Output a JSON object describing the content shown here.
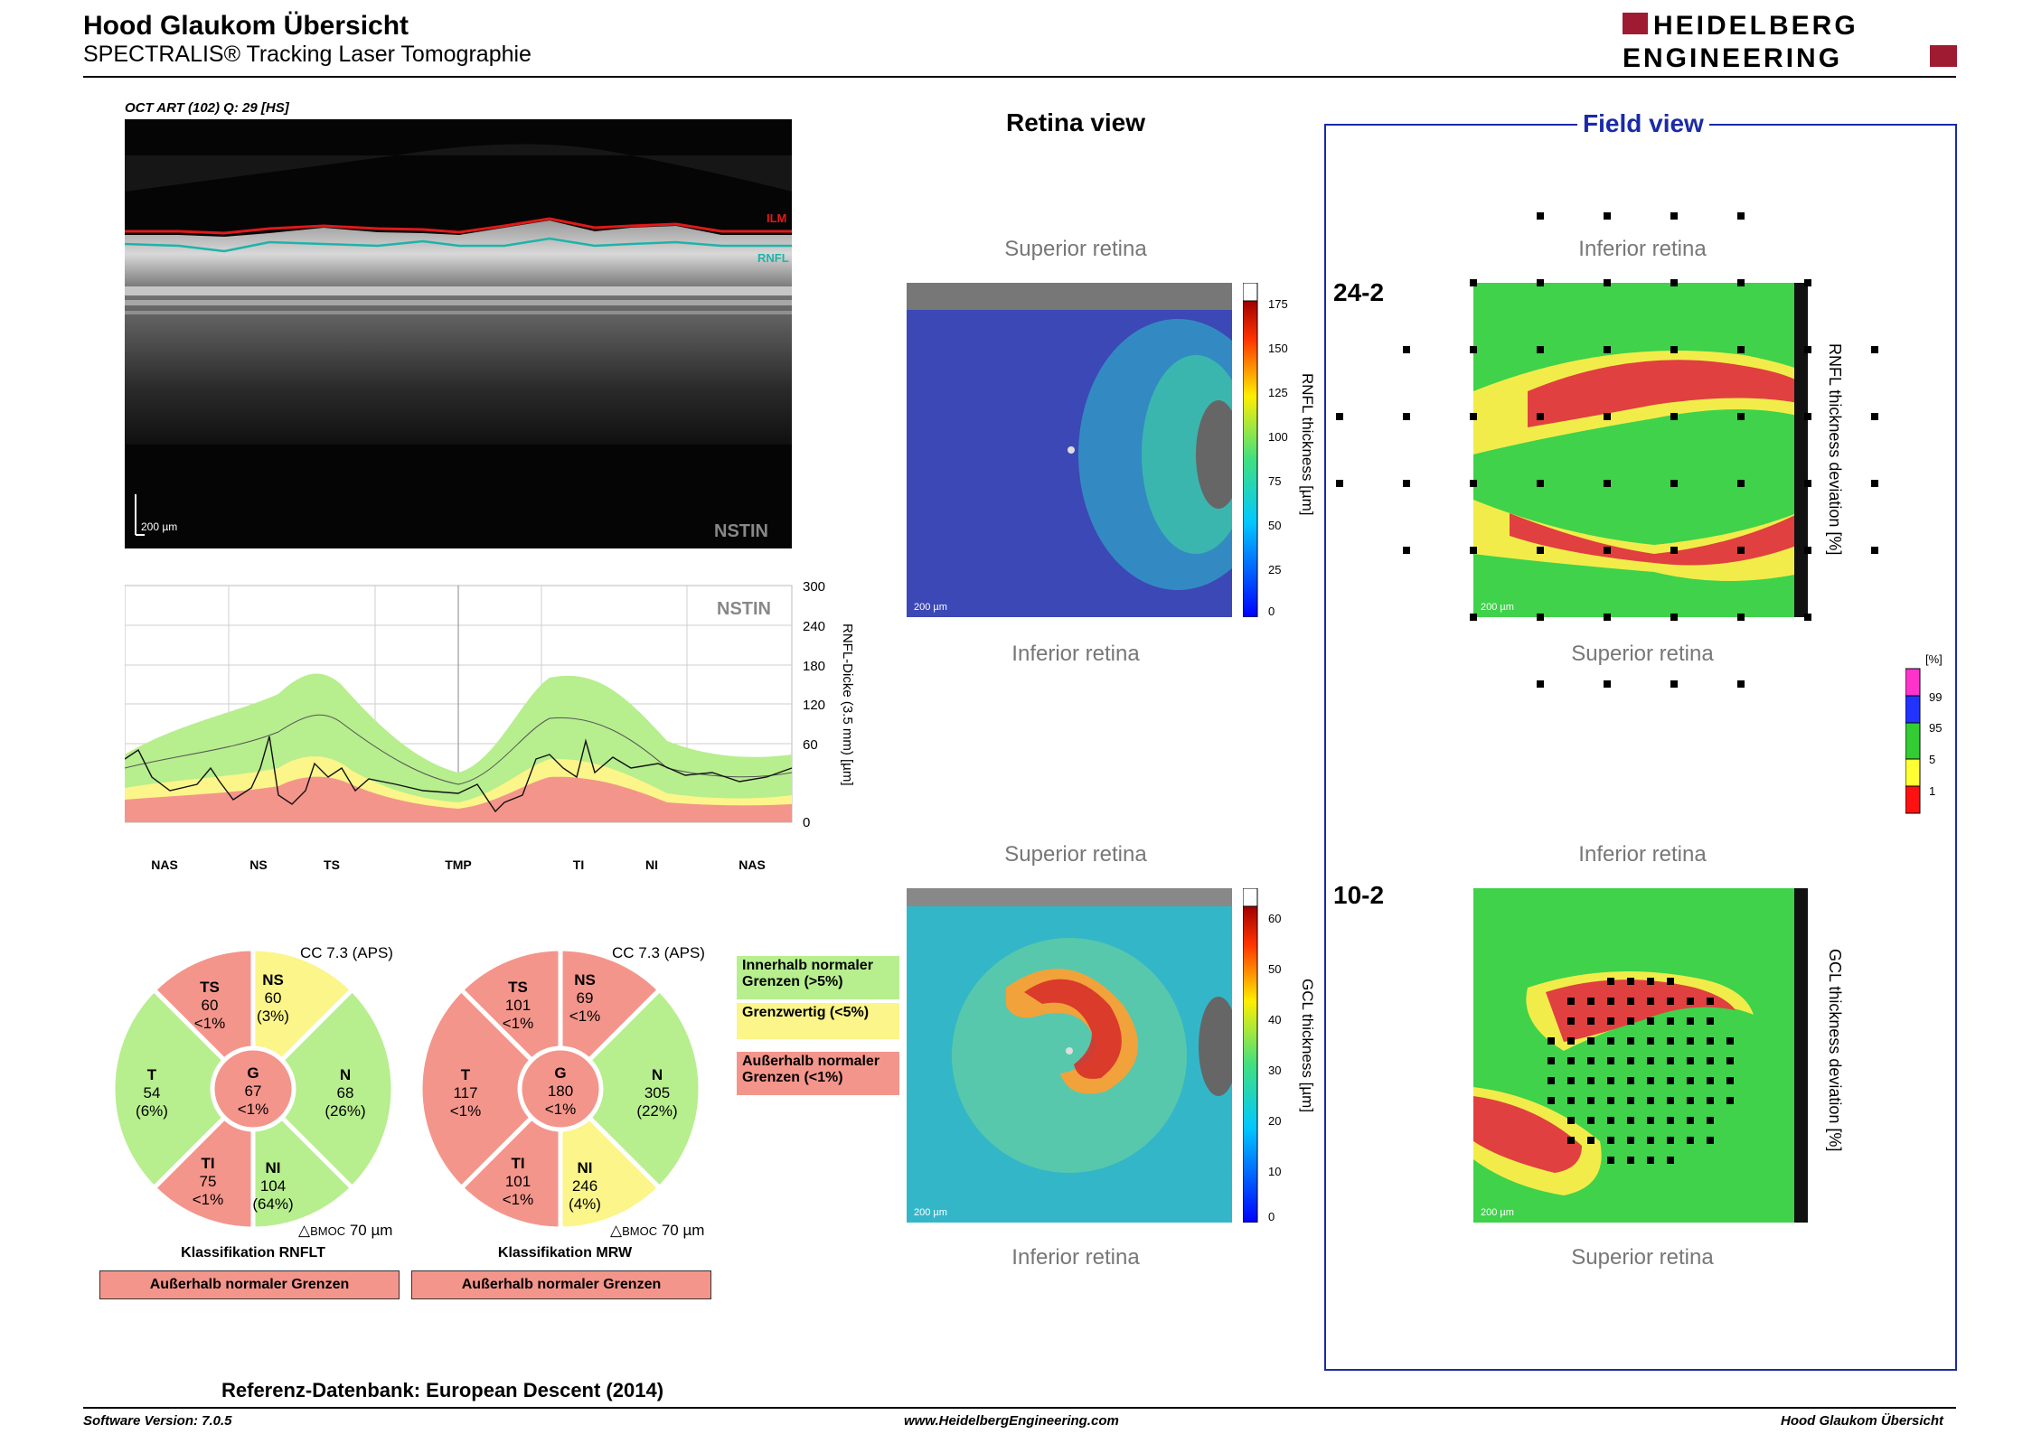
{
  "header": {
    "title": "Hood Glaukom Übersicht",
    "subtitle": "SPECTRALIS® Tracking Laser Tomographie",
    "logo_line1": "HEIDELBERG",
    "logo_line2": "ENGINEERING"
  },
  "oct": {
    "label": "OCT ART (102) Q: 29 [HS]",
    "ilm_label": "ILM",
    "rnfl_label": "RNFL",
    "scale": "200 µm",
    "mode": "NSTIN"
  },
  "tsnit": {
    "mode": "NSTIN",
    "ylabel": "RNFL-Dicke (3.5 mm) [µm]",
    "yticks": [
      "300",
      "240",
      "180",
      "120",
      "60",
      "0"
    ],
    "xlabels": [
      "NAS",
      "NS",
      "TS",
      "TMP",
      "TI",
      "NI",
      "NAS"
    ]
  },
  "pie_rnflt": {
    "cc": "CC 7.3 (APS)",
    "TS": {
      "name": "TS",
      "value": "60",
      "pct": "<1%"
    },
    "NS": {
      "name": "NS",
      "value": "60",
      "pct": "(3%)"
    },
    "T": {
      "name": "T",
      "value": "54",
      "pct": "(6%)"
    },
    "G": {
      "name": "G",
      "value": "67",
      "pct": "<1%"
    },
    "N": {
      "name": "N",
      "value": "68",
      "pct": "(26%)"
    },
    "TI": {
      "name": "TI",
      "value": "75",
      "pct": "<1%"
    },
    "NI": {
      "name": "NI",
      "value": "104",
      "pct": "(64%)"
    },
    "bmoc_prefix": "BMOC",
    "bmoc_value": "70 µm",
    "classification": "Klassifikation RNFLT",
    "result": "Außerhalb normaler Grenzen"
  },
  "pie_mrw": {
    "cc": "CC 7.3 (APS)",
    "TS": {
      "name": "TS",
      "value": "101",
      "pct": "<1%"
    },
    "NS": {
      "name": "NS",
      "value": "69",
      "pct": "<1%"
    },
    "T": {
      "name": "T",
      "value": "117",
      "pct": "<1%"
    },
    "G": {
      "name": "G",
      "value": "180",
      "pct": "<1%"
    },
    "N": {
      "name": "N",
      "value": "305",
      "pct": "(22%)"
    },
    "TI": {
      "name": "TI",
      "value": "101",
      "pct": "<1%"
    },
    "NI": {
      "name": "NI",
      "value": "246",
      "pct": "(4%)"
    },
    "bmoc_prefix": "BMOC",
    "bmoc_value": "70 µm",
    "classification": "Klassifikation MRW",
    "result": "Außerhalb normaler Grenzen"
  },
  "legend": {
    "within": "Innerhalb normaler Grenzen (>5%)",
    "borderline": "Grenzwertig (<5%)",
    "outside": "Außerhalb normaler Grenzen (<1%)"
  },
  "retina_view": {
    "title": "Retina view",
    "superior": "Superior retina",
    "inferior": "Inferior retina",
    "scale": "200 µm",
    "rnfl_label": "RNFL thickness [µm]",
    "rnfl_ticks": [
      "175",
      "150",
      "125",
      "100",
      "75",
      "50",
      "25",
      "0"
    ],
    "gcl_label": "GCL thickness [µm]",
    "gcl_ticks": [
      "60",
      "50",
      "40",
      "30",
      "20",
      "10",
      "0"
    ]
  },
  "field_view": {
    "title": "Field view",
    "grid1": "24-2",
    "grid2": "10-2",
    "inferior": "Inferior retina",
    "superior": "Superior retina",
    "scale": "200 µm",
    "rnfl_dev_label": "RNFL thickness deviation [%]",
    "gcl_dev_label": "GCL thickness deviation [%]",
    "pct_unit": "[%]",
    "pct_ticks": [
      "99",
      "95",
      "5",
      "1"
    ]
  },
  "referenz": "Referenz-Datenbank: European Descent (2014)",
  "footer": {
    "version": "Software Version: 7.0.5",
    "url": "www.HeidelbergEngineering.com",
    "right": "Hood Glaukom Übersicht"
  },
  "colors": {
    "green": "#b7ee8e",
    "yellow": "#fbf58a",
    "red": "#f4958b",
    "field_blue": "#1a2aa8",
    "logo_red": "#9e1b32"
  }
}
